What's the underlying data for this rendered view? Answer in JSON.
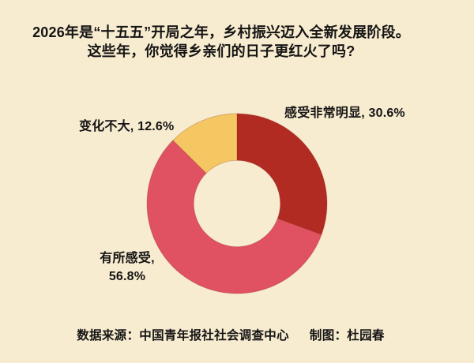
{
  "page": {
    "background_color": "#f8ecd0",
    "text_color": "#141414"
  },
  "title": {
    "line1": "2026年是“十五五”开局之年，乡村振兴迈入全新发展阶段。",
    "line2": "这些年，你觉得乡亲们的日子更红火了吗?"
  },
  "chart_data": {
    "type": "pie",
    "subtype": "donut",
    "title": "这些年，你觉得乡亲们的日子更红火了吗?",
    "unit": "%",
    "start_angle_deg": 0,
    "direction": "clockwise",
    "inner_radius_ratio": 0.48,
    "legend_position": "none",
    "segments": [
      {
        "label": "感受非常明显",
        "value": 30.6,
        "color": "#b22b22"
      },
      {
        "label": "有所感受",
        "value": 56.8,
        "color": "#e05162"
      },
      {
        "label": "变化不大",
        "value": 12.6,
        "color": "#f5c762"
      }
    ]
  },
  "annotations": {
    "mingxian": "感受非常明显, 30.6%",
    "bianhua": "变化不大, 12.6%",
    "ganshou_line1": "有所感受,",
    "ganshou_line2": "56.8%"
  },
  "footer": {
    "source": "数据来源：中国青年报社社会调查中心",
    "credit": "制图：杜园春"
  }
}
